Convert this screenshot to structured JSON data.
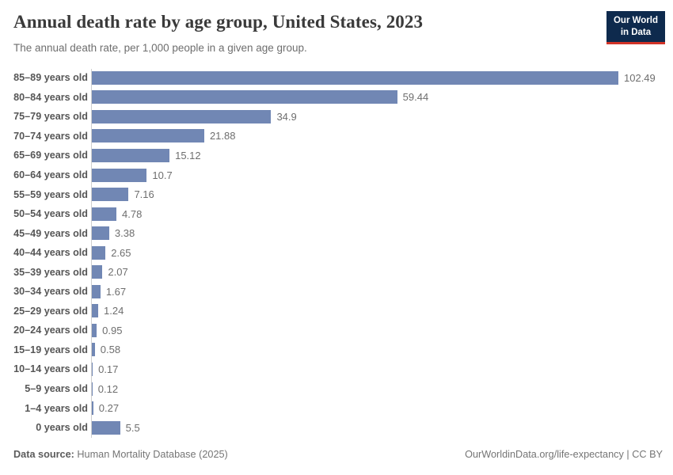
{
  "header": {
    "title": "Annual death rate by age group, United States, 2023",
    "subtitle": "The annual death rate, per 1,000 people in a given age group.",
    "logo": {
      "line1": "Our World",
      "line2": "in Data",
      "bg_color": "#0e2a4d",
      "accent_color": "#d13328"
    }
  },
  "chart_data": {
    "type": "bar",
    "orientation": "horizontal",
    "title": "Annual death rate by age group, United States, 2023",
    "subtitle": "The annual death rate, per 1,000 people in a given age group.",
    "categories": [
      "85–89 years old",
      "80–84 years old",
      "75–79 years old",
      "70–74 years old",
      "65–69 years old",
      "60–64 years old",
      "55–59 years old",
      "50–54 years old",
      "45–49 years old",
      "40–44 years old",
      "35–39 years old",
      "30–34 years old",
      "25–29 years old",
      "20–24 years old",
      "15–19 years old",
      "10–14 years old",
      "5–9 years old",
      "1–4 years old",
      "0 years old"
    ],
    "values": [
      102.49,
      59.44,
      34.9,
      21.88,
      15.12,
      10.7,
      7.16,
      4.78,
      3.38,
      2.65,
      2.07,
      1.67,
      1.24,
      0.95,
      0.58,
      0.17,
      0.12,
      0.27,
      5.5
    ],
    "value_labels": [
      "102.49",
      "59.44",
      "34.9",
      "21.88",
      "15.12",
      "10.7",
      "7.16",
      "4.78",
      "3.38",
      "2.65",
      "2.07",
      "1.67",
      "1.24",
      "0.95",
      "0.58",
      "0.17",
      "0.12",
      "0.27",
      "5.5"
    ],
    "xlim": [
      0,
      102.49
    ],
    "bar_color": "#7187b4",
    "grid": false,
    "legend": "none",
    "xlabel": "",
    "ylabel": ""
  },
  "footer": {
    "source_label": "Data source:",
    "source_text": " Human Mortality Database (2025)",
    "link_text": "OurWorldinData.org/life-expectancy",
    "separator": " | ",
    "license": "CC BY"
  }
}
